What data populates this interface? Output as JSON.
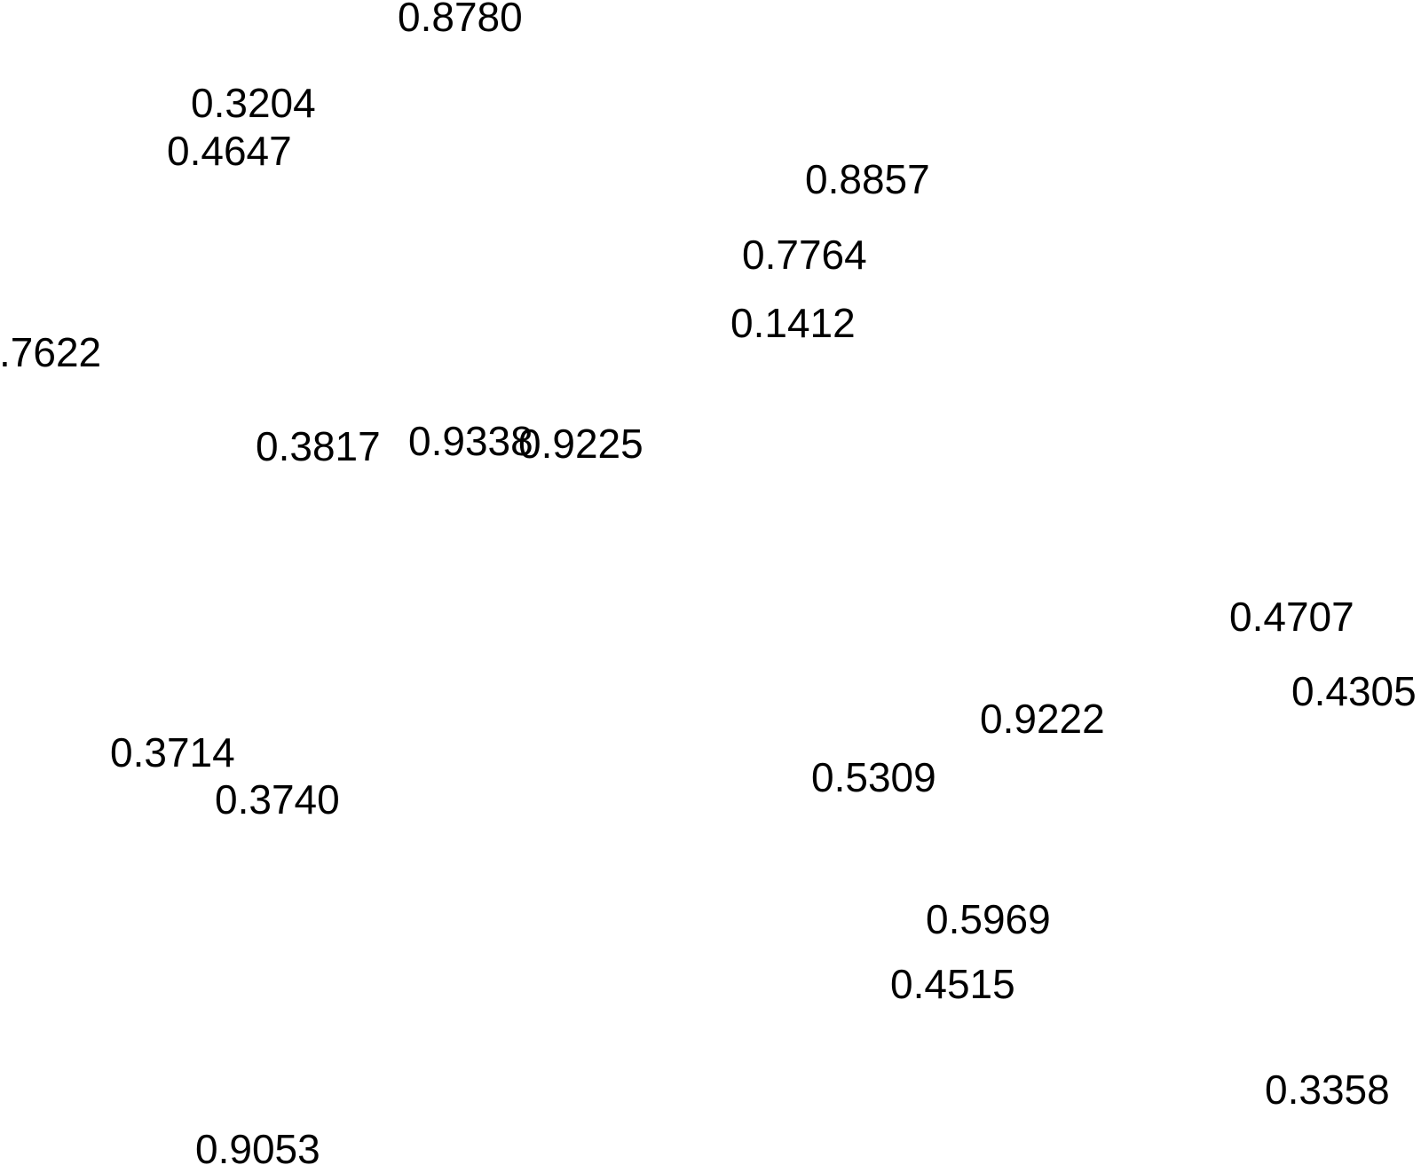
{
  "chart_data": {
    "type": "scatter",
    "marker": "text-label",
    "title": "",
    "xlabel": "",
    "ylabel": "",
    "axes_visible": false,
    "grid": false,
    "legend": "none",
    "text_color": "#000000",
    "background": "#ffffff",
    "points": [
      {
        "label": "0.8780"
      },
      {
        "label": "0.3204"
      },
      {
        "label": "0.4647"
      },
      {
        "label": "0.8857"
      },
      {
        "label": "0.7764"
      },
      {
        "label": "0.1412"
      },
      {
        "label": ".7622"
      },
      {
        "label": "0.3817"
      },
      {
        "label": "0.9338"
      },
      {
        "label": "0.9225"
      },
      {
        "label": "0.4707"
      },
      {
        "label": "0.4305"
      },
      {
        "label": "0.9222"
      },
      {
        "label": "0.3714"
      },
      {
        "label": "0.5309"
      },
      {
        "label": "0.3740"
      },
      {
        "label": "0.5969"
      },
      {
        "label": "0.4515"
      },
      {
        "label": "0.3358"
      },
      {
        "label": "0.9053"
      }
    ]
  }
}
